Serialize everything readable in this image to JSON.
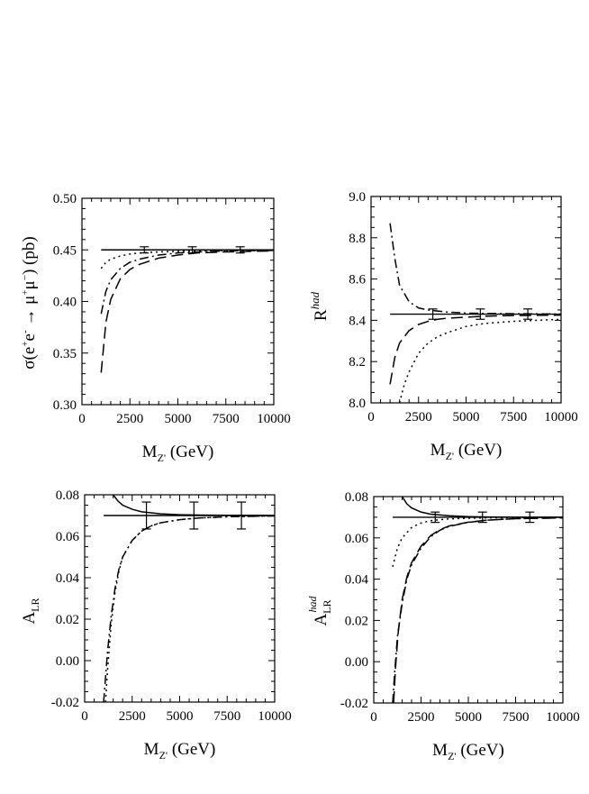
{
  "chart_data": [
    {
      "id": "panel-sigma",
      "type": "line",
      "xlabel": {
        "main": "M",
        "sub": "Z'",
        "unit": "(GeV)"
      },
      "ylabel": {
        "pre": "σ(e",
        "sup1": "+",
        "mid1": "e",
        "sup2": "-",
        "arrow": " → μ",
        "sup3": "+",
        "mid2": "μ",
        "sup4": "−",
        "post": ")  (pb)"
      },
      "xlim": [
        0,
        10000
      ],
      "ylim": [
        0.3,
        0.5
      ],
      "xticks": [
        0,
        2500,
        5000,
        7500,
        10000
      ],
      "xtick_labels": [
        "0",
        "2500",
        "5000",
        "7500",
        "10000"
      ],
      "yticks": [
        0.3,
        0.35,
        0.4,
        0.45,
        0.5
      ],
      "ytick_labels": [
        "0.30",
        "0.35",
        "0.40",
        "0.45",
        "0.50"
      ],
      "reference": {
        "name": "Standard Model",
        "value": 0.45,
        "x": [
          1000,
          10000
        ]
      },
      "error_bars": [
        {
          "x": 3250,
          "y": 0.45,
          "err": 0.003
        },
        {
          "x": 5750,
          "y": 0.45,
          "err": 0.003
        },
        {
          "x": 8250,
          "y": 0.45,
          "err": 0.003
        }
      ],
      "series": [
        {
          "name": "dotted",
          "style": "dotted",
          "x": [
            1000,
            1250,
            1500,
            2000,
            2500,
            3000,
            4000,
            5000,
            6000,
            7500,
            10000
          ],
          "y": [
            0.432,
            0.438,
            0.441,
            0.444,
            0.446,
            0.447,
            0.448,
            0.4485,
            0.449,
            0.4493,
            0.4495
          ]
        },
        {
          "name": "dash-dot",
          "style": "dashdot",
          "x": [
            1000,
            1250,
            1500,
            2000,
            2500,
            3000,
            4000,
            5000,
            6000,
            7500,
            10000
          ],
          "y": [
            0.388,
            0.41,
            0.421,
            0.432,
            0.438,
            0.441,
            0.445,
            0.447,
            0.448,
            0.449,
            0.4495
          ]
        },
        {
          "name": "long-dash",
          "style": "longdash",
          "x": [
            1000,
            1250,
            1500,
            2000,
            2500,
            3000,
            4000,
            5000,
            6000,
            7500,
            10000
          ],
          "y": [
            0.331,
            0.38,
            0.402,
            0.422,
            0.431,
            0.436,
            0.442,
            0.445,
            0.447,
            0.448,
            0.449
          ]
        }
      ]
    },
    {
      "id": "panel-rhad",
      "type": "line",
      "xlabel": {
        "main": "M",
        "sub": "Z'",
        "unit": "(GeV)"
      },
      "ylabel": {
        "main": "R",
        "sup": "had"
      },
      "xlim": [
        0,
        10000
      ],
      "ylim": [
        8.0,
        9.0
      ],
      "xticks": [
        0,
        2500,
        5000,
        7500,
        10000
      ],
      "xtick_labels": [
        "0",
        "2500",
        "5000",
        "7500",
        "10000"
      ],
      "yticks": [
        8.0,
        8.2,
        8.4,
        8.6,
        8.8,
        9.0
      ],
      "ytick_labels": [
        "8.0",
        "8.2",
        "8.4",
        "8.6",
        "8.8",
        "9.0"
      ],
      "reference": {
        "name": "Standard Model",
        "value": 8.43,
        "x": [
          1000,
          10000
        ]
      },
      "error_bars": [
        {
          "x": 3250,
          "y": 8.43,
          "err": 0.025
        },
        {
          "x": 5750,
          "y": 8.43,
          "err": 0.025
        },
        {
          "x": 8250,
          "y": 8.43,
          "err": 0.025
        }
      ],
      "series": [
        {
          "name": "dash-dot",
          "style": "dashdot",
          "x": [
            1000,
            1250,
            1500,
            2000,
            2500,
            3000,
            3500,
            4000,
            5000,
            6000,
            7500,
            10000
          ],
          "y": [
            8.87,
            8.7,
            8.57,
            8.49,
            8.46,
            8.45,
            8.445,
            8.44,
            8.435,
            8.433,
            8.432,
            8.43
          ]
        },
        {
          "name": "long-dash",
          "style": "longdash",
          "x": [
            1000,
            1250,
            1500,
            2000,
            2500,
            3000,
            3500,
            4000,
            5000,
            6000,
            7500,
            10000
          ],
          "y": [
            8.09,
            8.22,
            8.29,
            8.35,
            8.38,
            8.395,
            8.405,
            8.41,
            8.415,
            8.42,
            8.423,
            8.425
          ]
        },
        {
          "name": "dotted",
          "style": "dotted",
          "x": [
            1500,
            1750,
            2000,
            2500,
            3000,
            3500,
            4000,
            5000,
            6000,
            7500,
            10000
          ],
          "y": [
            8.0,
            8.09,
            8.15,
            8.24,
            8.29,
            8.32,
            8.34,
            8.37,
            8.385,
            8.395,
            8.405
          ]
        }
      ]
    },
    {
      "id": "panel-alr",
      "type": "line",
      "xlabel": {
        "main": "M",
        "sub": "Z'",
        "unit": "(GeV)"
      },
      "ylabel": {
        "main": "A",
        "sub": "LR"
      },
      "xlim": [
        0,
        10000
      ],
      "ylim": [
        -0.02,
        0.08
      ],
      "xticks": [
        0,
        2500,
        5000,
        7500,
        10000
      ],
      "xtick_labels": [
        "0",
        "2500",
        "5000",
        "7500",
        "10000"
      ],
      "yticks": [
        -0.02,
        0.0,
        0.02,
        0.04,
        0.06,
        0.08
      ],
      "ytick_labels": [
        "-0.02",
        "0.00",
        "0.02",
        "0.04",
        "0.06",
        "0.08"
      ],
      "reference": {
        "name": "Standard Model",
        "value": 0.07,
        "x": [
          1000,
          10000
        ]
      },
      "error_bars": [
        {
          "x": 3250,
          "y": 0.07,
          "err": 0.0065
        },
        {
          "x": 5750,
          "y": 0.07,
          "err": 0.0065
        },
        {
          "x": 8250,
          "y": 0.07,
          "err": 0.0065
        }
      ],
      "series": [
        {
          "name": "solid",
          "style": "solid",
          "x": [
            1500,
            1750,
            2000,
            2500,
            3000,
            4000,
            5000,
            6000,
            7500,
            10000
          ],
          "y": [
            0.08,
            0.077,
            0.075,
            0.073,
            0.0718,
            0.0708,
            0.0704,
            0.0702,
            0.0701,
            0.07
          ]
        },
        {
          "name": "dotted",
          "style": "dotted",
          "x": [
            1100,
            1200,
            1400,
            1600,
            1800,
            2000,
            2500,
            3000,
            3500,
            4000,
            5000,
            6000,
            7500,
            10000
          ],
          "y": [
            -0.02,
            -0.005,
            0.018,
            0.033,
            0.043,
            0.05,
            0.058,
            0.0625,
            0.065,
            0.0665,
            0.068,
            0.0688,
            0.0694,
            0.0698
          ]
        },
        {
          "name": "dash-dot",
          "style": "dashdot",
          "x": [
            1000,
            1100,
            1200,
            1400,
            1600,
            1800,
            2000,
            2500,
            3000,
            3500,
            4000,
            5000,
            6000,
            7500,
            10000
          ],
          "y": [
            -0.02,
            -0.008,
            0.004,
            0.022,
            0.035,
            0.044,
            0.05,
            0.058,
            0.0625,
            0.065,
            0.0665,
            0.068,
            0.0688,
            0.0694,
            0.0698
          ]
        }
      ]
    },
    {
      "id": "panel-alr-had",
      "type": "line",
      "xlabel": {
        "main": "M",
        "sub": "Z'",
        "unit": "(GeV)"
      },
      "ylabel": {
        "main": "A",
        "sub": "LR",
        "sup": "had"
      },
      "xlim": [
        0,
        10000
      ],
      "ylim": [
        -0.02,
        0.08
      ],
      "xticks": [
        0,
        2500,
        5000,
        7500,
        10000
      ],
      "xtick_labels": [
        "0",
        "2500",
        "5000",
        "7500",
        "10000"
      ],
      "yticks": [
        -0.02,
        0.0,
        0.02,
        0.04,
        0.06,
        0.08
      ],
      "ytick_labels": [
        "-0.02",
        "0.00",
        "0.02",
        "0.04",
        "0.06",
        "0.08"
      ],
      "reference": {
        "name": "Standard Model",
        "value": 0.07,
        "x": [
          1000,
          10000
        ]
      },
      "error_bars": [
        {
          "x": 3250,
          "y": 0.07,
          "err": 0.0025
        },
        {
          "x": 5750,
          "y": 0.07,
          "err": 0.0025
        },
        {
          "x": 8250,
          "y": 0.07,
          "err": 0.0025
        }
      ],
      "series": [
        {
          "name": "solid",
          "style": "solid",
          "x": [
            1500,
            1750,
            2000,
            2500,
            3000,
            4000,
            5000,
            6000,
            7500,
            10000
          ],
          "y": [
            0.08,
            0.0765,
            0.0745,
            0.0725,
            0.0715,
            0.0707,
            0.0703,
            0.0701,
            0.07,
            0.07
          ]
        },
        {
          "name": "dotted",
          "style": "dotted",
          "x": [
            1000,
            1250,
            1500,
            2000,
            2500,
            3000,
            3500,
            4000,
            5000,
            6000,
            7500,
            10000
          ],
          "y": [
            0.046,
            0.055,
            0.06,
            0.065,
            0.0672,
            0.0683,
            0.0688,
            0.0692,
            0.0695,
            0.0697,
            0.0698,
            0.0699
          ]
        },
        {
          "name": "long-dash",
          "style": "longdash",
          "x": [
            1050,
            1150,
            1300,
            1500,
            1750,
            2000,
            2500,
            3000,
            3500,
            4000,
            5000,
            6000,
            7500,
            10000
          ],
          "y": [
            -0.02,
            -0.003,
            0.015,
            0.03,
            0.041,
            0.048,
            0.056,
            0.061,
            0.064,
            0.0658,
            0.0676,
            0.0686,
            0.0693,
            0.0697
          ]
        },
        {
          "name": "dash-dot",
          "style": "dashdot",
          "x": [
            1000,
            1100,
            1250,
            1500,
            1750,
            2000,
            2500,
            3000,
            3500,
            4000,
            5000,
            6000,
            7500,
            10000
          ],
          "y": [
            -0.02,
            -0.006,
            0.012,
            0.028,
            0.04,
            0.047,
            0.055,
            0.0605,
            0.0637,
            0.0656,
            0.0675,
            0.0686,
            0.0693,
            0.0697
          ]
        }
      ]
    }
  ]
}
